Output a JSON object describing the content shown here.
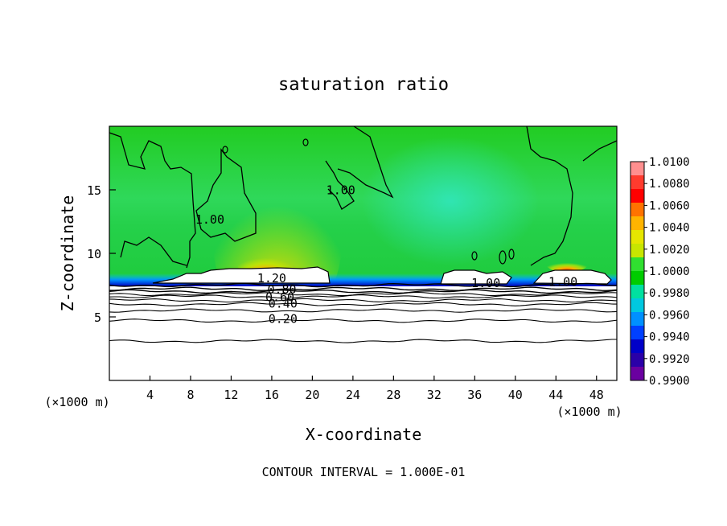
{
  "chart_data": {
    "type": "heatmap",
    "title": "saturation ratio",
    "xlabel": "X-coordinate",
    "ylabel": "Z-coordinate",
    "x_unit_left": "(×1000 m)",
    "x_unit_right": "(×1000 m)",
    "xlim": [
      0,
      50
    ],
    "ylim": [
      0,
      20
    ],
    "x_ticks": [
      4,
      8,
      12,
      16,
      20,
      24,
      28,
      32,
      36,
      40,
      44,
      48
    ],
    "y_ticks": [
      5,
      10,
      15
    ],
    "footer": "CONTOUR INTERVAL = 1.000E-01",
    "colorbar": {
      "labels": [
        "1.0100",
        "1.0080",
        "1.0060",
        "1.0040",
        "1.0020",
        "1.0000",
        "0.9980",
        "0.9960",
        "0.9940",
        "0.9920",
        "0.9900"
      ],
      "colors": [
        "#ff8f8f",
        "#ff3b2e",
        "#ff0000",
        "#ff7300",
        "#ffb400",
        "#e6e600",
        "#c8e600",
        "#30e030",
        "#00cc00",
        "#00e0a0",
        "#00c8e0",
        "#0090ff",
        "#0040ff",
        "#0000c8",
        "#2a00a8",
        "#6a00a0"
      ]
    },
    "contour_labels": [
      {
        "text": "1.00",
        "x": 9.9,
        "z": 12.4
      },
      {
        "text": "1.00",
        "x": 22.8,
        "z": 14.7
      },
      {
        "text": "1.20",
        "x": 16.0,
        "z": 7.8
      },
      {
        "text": "0.80",
        "x": 17.0,
        "z": 6.9
      },
      {
        "text": "0.60",
        "x": 16.8,
        "z": 6.3
      },
      {
        "text": "0.40",
        "x": 17.1,
        "z": 5.8
      },
      {
        "text": "0.20",
        "x": 17.1,
        "z": 4.6
      },
      {
        "text": "1.00",
        "x": 37.1,
        "z": 7.4
      },
      {
        "text": "1.00",
        "x": 44.7,
        "z": 7.5
      }
    ],
    "contour_levels_z": [
      7.5,
      7.2,
      7.0,
      6.8,
      6.6,
      6.3,
      6.0,
      5.5,
      4.7,
      3.1
    ]
  }
}
